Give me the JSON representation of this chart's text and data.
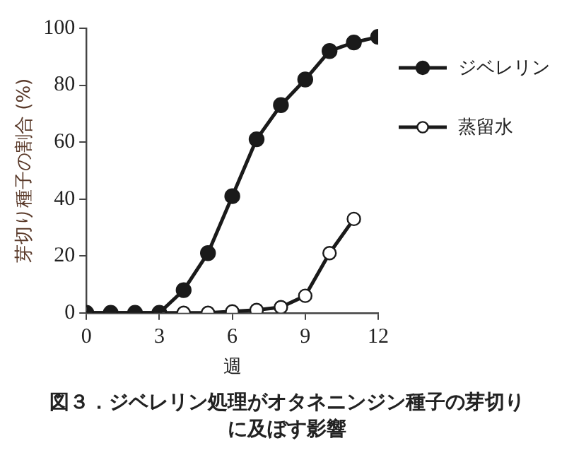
{
  "chart_data": {
    "type": "line",
    "title": "図３．ジベレリン処理がオタネニンジン種子の芽切りに及ぼす影響",
    "xlabel": "週",
    "ylabel": "芽切り種子の割合 (%)",
    "x": [
      0,
      1,
      2,
      3,
      4,
      5,
      6,
      7,
      8,
      9,
      10,
      11,
      12
    ],
    "series": [
      {
        "name": "ジベレリン",
        "color": "#1a1a1a",
        "values": [
          0,
          0,
          0,
          0,
          8,
          21,
          41,
          61,
          73,
          82,
          92,
          95,
          97
        ]
      },
      {
        "name": "蒸留水",
        "color": "#1a1a1a",
        "values": [
          0,
          0,
          0,
          0,
          0,
          0,
          0.5,
          1,
          2,
          6,
          21,
          33,
          null
        ]
      }
    ],
    "xlim": [
      0,
      12
    ],
    "xticks": [
      0,
      3,
      6,
      9,
      12
    ],
    "ylim": [
      0,
      100
    ],
    "yticks": [
      0,
      20,
      40,
      60,
      80,
      100
    ],
    "grid": false,
    "legend": "right",
    "marker": "circle",
    "line_style": "solid"
  }
}
